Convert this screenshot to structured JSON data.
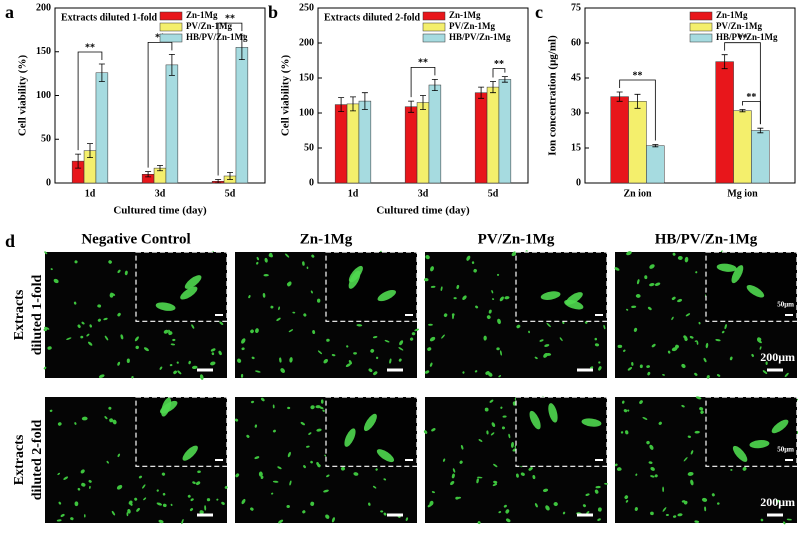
{
  "chart_data": [
    {
      "type": "bar",
      "panel": "a",
      "title": "Extracts diluted 1-fold",
      "xlabel": "Cultured time (day)",
      "ylabel": "Cell viability (%)",
      "categories": [
        "1d",
        "3d",
        "5d"
      ],
      "ylim": [
        0,
        200
      ],
      "yticks": [
        0,
        50,
        100,
        150,
        200
      ],
      "legend": "top-right",
      "series": [
        {
          "name": "Zn-1Mg",
          "color": "#e8161b",
          "values": [
            25,
            10,
            2
          ],
          "errors": [
            8,
            3,
            2
          ]
        },
        {
          "name": "PV/Zn-1Mg",
          "color": "#f4ef6c",
          "values": [
            37,
            17,
            8
          ],
          "errors": [
            8,
            3,
            4
          ]
        },
        {
          "name": "HB/PV/Zn-1Mg",
          "color": "#a6dbe0",
          "values": [
            126,
            135,
            155
          ],
          "errors": [
            10,
            12,
            14
          ]
        }
      ],
      "significance": [
        {
          "category": "1d",
          "between": [
            "Zn-1Mg",
            "HB/PV/Zn-1Mg"
          ],
          "text": "**"
        },
        {
          "category": "3d",
          "between": [
            "Zn-1Mg",
            "HB/PV/Zn-1Mg"
          ],
          "text": "**"
        },
        {
          "category": "5d",
          "between": [
            "Zn-1Mg",
            "HB/PV/Zn-1Mg"
          ],
          "text": "**"
        }
      ]
    },
    {
      "type": "bar",
      "panel": "b",
      "title": "Extracts diluted 2-fold",
      "xlabel": "Cultured time (day)",
      "ylabel": "Cell viability (%)",
      "categories": [
        "1d",
        "3d",
        "5d"
      ],
      "ylim": [
        0,
        250
      ],
      "yticks": [
        0,
        50,
        100,
        150,
        200,
        250
      ],
      "legend": "top-right",
      "series": [
        {
          "name": "Zn-1Mg",
          "color": "#e8161b",
          "values": [
            112,
            109,
            129
          ],
          "errors": [
            10,
            8,
            8
          ]
        },
        {
          "name": "PV/Zn-1Mg",
          "color": "#f4ef6c",
          "values": [
            113,
            115,
            137
          ],
          "errors": [
            10,
            10,
            8
          ]
        },
        {
          "name": "HB/PV/Zn-1Mg",
          "color": "#a6dbe0",
          "values": [
            117,
            140,
            148
          ],
          "errors": [
            12,
            8,
            4
          ]
        }
      ],
      "significance": [
        {
          "category": "3d",
          "between": [
            "Zn-1Mg",
            "HB/PV/Zn-1Mg"
          ],
          "text": "**"
        },
        {
          "category": "5d",
          "between": [
            "PV/Zn-1Mg",
            "HB/PV/Zn-1Mg"
          ],
          "text": "**"
        }
      ]
    },
    {
      "type": "bar",
      "panel": "c",
      "ylabel": "Ion concentration (μg/ml)",
      "categories": [
        "Zn ion",
        "Mg ion"
      ],
      "ylim": [
        0,
        75
      ],
      "yticks": [
        0,
        15,
        30,
        45,
        60,
        75
      ],
      "legend": "top-right",
      "series": [
        {
          "name": "Zn-1Mg",
          "color": "#e8161b",
          "values": [
            37,
            52
          ],
          "errors": [
            2,
            3
          ]
        },
        {
          "name": "PV/Zn-1Mg",
          "color": "#f4ef6c",
          "values": [
            35,
            31
          ],
          "errors": [
            3,
            0.5
          ]
        },
        {
          "name": "HB/PV/Zn-1Mg",
          "color": "#a6dbe0",
          "values": [
            16,
            22.5
          ],
          "errors": [
            0.5,
            1
          ]
        }
      ],
      "significance": [
        {
          "category": "Zn ion",
          "between": [
            "Zn-1Mg",
            "HB/PV/Zn-1Mg"
          ],
          "text": "**"
        },
        {
          "category": "Mg ion",
          "between": [
            "Zn-1Mg",
            "HB/PV/Zn-1Mg"
          ],
          "text": "**"
        },
        {
          "category": "Mg ion",
          "between": [
            "PV/Zn-1Mg",
            "HB/PV/Zn-1Mg"
          ],
          "text": "**"
        }
      ]
    }
  ],
  "micrographs": {
    "panel": "d",
    "columns": [
      "Negative Control",
      "Zn-1Mg",
      "PV/Zn-1Mg",
      "HB/PV/Zn-1Mg"
    ],
    "rows": [
      [
        "Extracts",
        "diluted 1-fold"
      ],
      [
        "Extracts",
        "diluted 2-fold"
      ]
    ],
    "scale_bar": "200μm",
    "inset_scale_bar": "50μm"
  }
}
